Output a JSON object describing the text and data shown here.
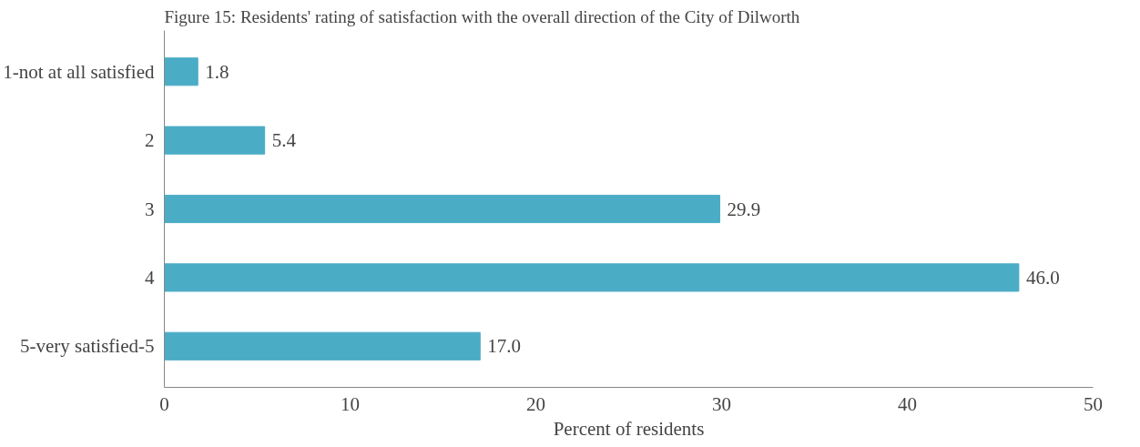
{
  "chart_data": {
    "type": "bar",
    "orientation": "horizontal",
    "title": "Figure 15: Residents' rating of satisfaction with the overall direction of the City of Dilworth",
    "xlabel": "Percent of residents",
    "categories": [
      "1-not at all satisfied",
      "2",
      "3",
      "4",
      "5-very satisfied-5"
    ],
    "values": [
      1.8,
      5.4,
      29.9,
      46.0,
      17.0
    ],
    "value_labels": [
      "1.8",
      "5.4",
      "29.9",
      "46.0",
      "17.0"
    ],
    "color": "#4bacc6",
    "xlim": [
      0,
      50
    ],
    "xticks": [
      0,
      10,
      20,
      30,
      40,
      50
    ],
    "grid": false
  }
}
